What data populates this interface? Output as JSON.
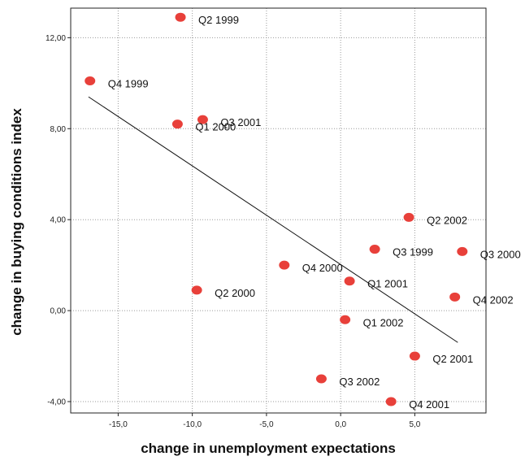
{
  "chart_data": {
    "type": "scatter",
    "title": "",
    "xlabel": "change in unemployment expectations",
    "ylabel": "change in buying conditions index",
    "xlim": [
      -18.2,
      9.8
    ],
    "ylim": [
      -4.5,
      13.3
    ],
    "x_ticks": [
      -15,
      -10,
      -5,
      0,
      5
    ],
    "x_tick_labels": [
      "-15,0",
      "-10,0",
      "-5,0",
      "0,0",
      "5,0"
    ],
    "y_ticks": [
      -4,
      0,
      4,
      8,
      12
    ],
    "y_tick_labels": [
      "-4,00",
      "0,00",
      "4,00",
      "8,00",
      "12,00"
    ],
    "grid": true,
    "marker_color": "#e8403a",
    "points": [
      {
        "label": "Q2 1999",
        "x": -10.8,
        "y": 12.9
      },
      {
        "label": "Q4 1999",
        "x": -16.9,
        "y": 10.1
      },
      {
        "label": "Q3 2001",
        "x": -9.3,
        "y": 8.4
      },
      {
        "label": "Q1 2000",
        "x": -11.0,
        "y": 8.2
      },
      {
        "label": "Q2 2002",
        "x": 4.6,
        "y": 4.1
      },
      {
        "label": "Q3 1999",
        "x": 2.3,
        "y": 2.7
      },
      {
        "label": "Q3 2000",
        "x": 8.2,
        "y": 2.6
      },
      {
        "label": "Q4 2000",
        "x": -3.8,
        "y": 2.0
      },
      {
        "label": "Q1 2001",
        "x": 0.6,
        "y": 1.3
      },
      {
        "label": "Q2 2000",
        "x": -9.7,
        "y": 0.9
      },
      {
        "label": "Q4 2002",
        "x": 7.7,
        "y": 0.6
      },
      {
        "label": "Q1 2002",
        "x": 0.3,
        "y": -0.4
      },
      {
        "label": "Q2 2001",
        "x": 5.0,
        "y": -2.0
      },
      {
        "label": "Q3 2002",
        "x": -1.3,
        "y": -3.0
      },
      {
        "label": "Q4 2001",
        "x": 3.4,
        "y": -4.0
      }
    ],
    "fit_line": {
      "x": [
        -17.0,
        7.9
      ],
      "y": [
        9.4,
        -1.4
      ]
    }
  }
}
